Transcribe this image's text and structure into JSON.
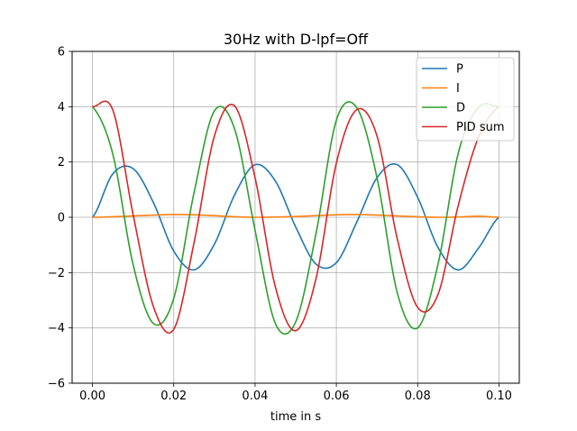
{
  "chart_data": {
    "type": "line",
    "title": "30Hz with D-lpf=Off",
    "xlabel": "time in s",
    "ylabel": "",
    "xlim": [
      -0.005,
      0.105
    ],
    "ylim": [
      -6,
      6
    ],
    "xticks": [
      0.0,
      0.02,
      0.04,
      0.06,
      0.08,
      0.1
    ],
    "xtick_labels": [
      "0.00",
      "0.02",
      "0.04",
      "0.06",
      "0.08",
      "0.10"
    ],
    "yticks": [
      -6,
      -4,
      -2,
      0,
      2,
      4,
      6
    ],
    "ytick_labels": [
      "−6",
      "−4",
      "−2",
      "0",
      "2",
      "4",
      "6"
    ],
    "grid": true,
    "legend_position": "top-right",
    "frequency_hz": 30,
    "x": [
      0.0,
      0.005,
      0.01,
      0.015,
      0.02,
      0.025,
      0.03,
      0.035,
      0.04,
      0.045,
      0.05,
      0.055,
      0.06,
      0.065,
      0.07,
      0.075,
      0.08,
      0.085,
      0.09,
      0.095,
      0.1
    ],
    "series": [
      {
        "name": "P",
        "color": "#1f77b4",
        "values": [
          0.0,
          1.57,
          1.76,
          0.53,
          -1.22,
          -1.9,
          -0.97,
          0.82,
          1.9,
          1.31,
          -0.35,
          -1.69,
          -1.64,
          -0.18,
          1.43,
          1.9,
          0.72,
          -1.09,
          -1.9,
          -1.11,
          0.0
        ]
      },
      {
        "name": "I",
        "color": "#ff7f0e",
        "values": [
          0.0,
          0.02,
          0.05,
          0.08,
          0.1,
          0.09,
          0.06,
          0.02,
          0.0,
          0.01,
          0.03,
          0.06,
          0.09,
          0.1,
          0.08,
          0.05,
          0.02,
          0.0,
          0.01,
          0.04,
          0.0
        ]
      },
      {
        "name": "D",
        "color": "#2ca02c",
        "values": [
          4.0,
          2.29,
          -1.71,
          -3.84,
          -2.93,
          0.9,
          3.85,
          3.18,
          -0.47,
          -3.84,
          -3.78,
          -0.58,
          3.51,
          3.97,
          1.43,
          -2.74,
          -4.0,
          -1.7,
          2.33,
          3.98,
          4.0
        ]
      },
      {
        "name": "PID sum",
        "color": "#d62728",
        "values": [
          4.0,
          3.88,
          0.1,
          -3.23,
          -4.05,
          -0.91,
          2.94,
          4.02,
          1.43,
          -2.52,
          -4.1,
          -2.21,
          1.96,
          3.89,
          2.94,
          -0.79,
          -3.26,
          -2.79,
          0.44,
          2.91,
          4.0
        ]
      }
    ]
  }
}
